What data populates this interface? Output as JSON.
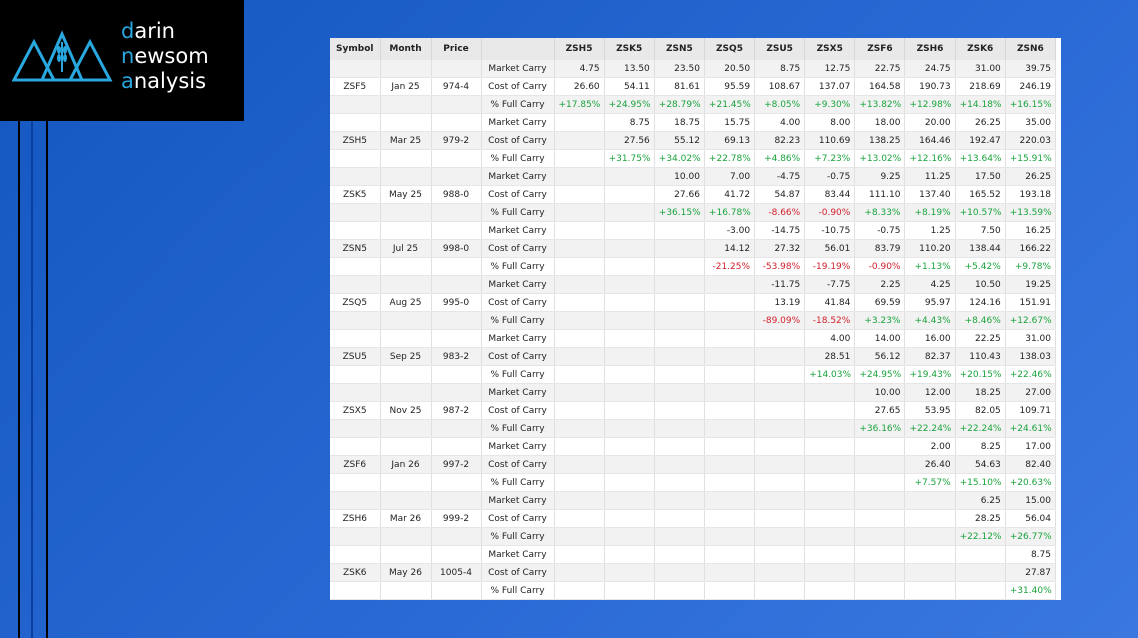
{
  "logo": {
    "words": [
      "darin",
      "newsom",
      "analysis"
    ]
  },
  "table": {
    "headers": [
      "Symbol",
      "Month",
      "Price",
      null,
      "ZSH5",
      "ZSK5",
      "ZSN5",
      "ZSQ5",
      "ZSU5",
      "ZSX5",
      "ZSF6",
      "ZSH6",
      "ZSK6",
      "ZSN6"
    ],
    "row_labels": [
      "Market Carry",
      "Cost of Carry",
      "% Full Carry"
    ],
    "blocks": [
      {
        "symbol": "ZSF5",
        "month": "Jan 25",
        "price": "974-4",
        "market_carry": [
          "4.75",
          "13.50",
          "23.50",
          "20.50",
          "8.75",
          "12.75",
          "22.75",
          "24.75",
          "31.00",
          "39.75"
        ],
        "cost_of_carry": [
          "26.60",
          "54.11",
          "81.61",
          "95.59",
          "108.67",
          "137.07",
          "164.58",
          "190.73",
          "218.69",
          "246.19"
        ],
        "full_carry": [
          "+17.85%",
          "+24.95%",
          "+28.79%",
          "+21.45%",
          "+8.05%",
          "+9.30%",
          "+13.82%",
          "+12.98%",
          "+14.18%",
          "+16.15%"
        ]
      },
      {
        "symbol": "ZSH5",
        "month": "Mar 25",
        "price": "979-2",
        "market_carry": [
          null,
          "8.75",
          "18.75",
          "15.75",
          "4.00",
          "8.00",
          "18.00",
          "20.00",
          "26.25",
          "35.00"
        ],
        "cost_of_carry": [
          null,
          "27.56",
          "55.12",
          "69.13",
          "82.23",
          "110.69",
          "138.25",
          "164.46",
          "192.47",
          "220.03"
        ],
        "full_carry": [
          null,
          "+31.75%",
          "+34.02%",
          "+22.78%",
          "+4.86%",
          "+7.23%",
          "+13.02%",
          "+12.16%",
          "+13.64%",
          "+15.91%"
        ]
      },
      {
        "symbol": "ZSK5",
        "month": "May 25",
        "price": "988-0",
        "market_carry": [
          null,
          null,
          "10.00",
          "7.00",
          "-4.75",
          "-0.75",
          "9.25",
          "11.25",
          "17.50",
          "26.25"
        ],
        "cost_of_carry": [
          null,
          null,
          "27.66",
          "41.72",
          "54.87",
          "83.44",
          "111.10",
          "137.40",
          "165.52",
          "193.18"
        ],
        "full_carry": [
          null,
          null,
          "+36.15%",
          "+16.78%",
          "-8.66%",
          "-0.90%",
          "+8.33%",
          "+8.19%",
          "+10.57%",
          "+13.59%"
        ]
      },
      {
        "symbol": "ZSN5",
        "month": "Jul 25",
        "price": "998-0",
        "market_carry": [
          null,
          null,
          null,
          "-3.00",
          "-14.75",
          "-10.75",
          "-0.75",
          "1.25",
          "7.50",
          "16.25"
        ],
        "cost_of_carry": [
          null,
          null,
          null,
          "14.12",
          "27.32",
          "56.01",
          "83.79",
          "110.20",
          "138.44",
          "166.22"
        ],
        "full_carry": [
          null,
          null,
          null,
          "-21.25%",
          "-53.98%",
          "-19.19%",
          "-0.90%",
          "+1.13%",
          "+5.42%",
          "+9.78%"
        ]
      },
      {
        "symbol": "ZSQ5",
        "month": "Aug 25",
        "price": "995-0",
        "market_carry": [
          null,
          null,
          null,
          null,
          "-11.75",
          "-7.75",
          "2.25",
          "4.25",
          "10.50",
          "19.25"
        ],
        "cost_of_carry": [
          null,
          null,
          null,
          null,
          "13.19",
          "41.84",
          "69.59",
          "95.97",
          "124.16",
          "151.91"
        ],
        "full_carry": [
          null,
          null,
          null,
          null,
          "-89.09%",
          "-18.52%",
          "+3.23%",
          "+4.43%",
          "+8.46%",
          "+12.67%"
        ]
      },
      {
        "symbol": "ZSU5",
        "month": "Sep 25",
        "price": "983-2",
        "market_carry": [
          null,
          null,
          null,
          null,
          null,
          "4.00",
          "14.00",
          "16.00",
          "22.25",
          "31.00"
        ],
        "cost_of_carry": [
          null,
          null,
          null,
          null,
          null,
          "28.51",
          "56.12",
          "82.37",
          "110.43",
          "138.03"
        ],
        "full_carry": [
          null,
          null,
          null,
          null,
          null,
          "+14.03%",
          "+24.95%",
          "+19.43%",
          "+20.15%",
          "+22.46%"
        ]
      },
      {
        "symbol": "ZSX5",
        "month": "Nov 25",
        "price": "987-2",
        "market_carry": [
          null,
          null,
          null,
          null,
          null,
          null,
          "10.00",
          "12.00",
          "18.25",
          "27.00"
        ],
        "cost_of_carry": [
          null,
          null,
          null,
          null,
          null,
          null,
          "27.65",
          "53.95",
          "82.05",
          "109.71"
        ],
        "full_carry": [
          null,
          null,
          null,
          null,
          null,
          null,
          "+36.16%",
          "+22.24%",
          "+22.24%",
          "+24.61%"
        ]
      },
      {
        "symbol": "ZSF6",
        "month": "Jan 26",
        "price": "997-2",
        "market_carry": [
          null,
          null,
          null,
          null,
          null,
          null,
          null,
          "2.00",
          "8.25",
          "17.00"
        ],
        "cost_of_carry": [
          null,
          null,
          null,
          null,
          null,
          null,
          null,
          "26.40",
          "54.63",
          "82.40"
        ],
        "full_carry": [
          null,
          null,
          null,
          null,
          null,
          null,
          null,
          "+7.57%",
          "+15.10%",
          "+20.63%"
        ]
      },
      {
        "symbol": "ZSH6",
        "month": "Mar 26",
        "price": "999-2",
        "market_carry": [
          null,
          null,
          null,
          null,
          null,
          null,
          null,
          null,
          "6.25",
          "15.00"
        ],
        "cost_of_carry": [
          null,
          null,
          null,
          null,
          null,
          null,
          null,
          null,
          "28.25",
          "56.04"
        ],
        "full_carry": [
          null,
          null,
          null,
          null,
          null,
          null,
          null,
          null,
          "+22.12%",
          "+26.77%"
        ]
      },
      {
        "symbol": "ZSK6",
        "month": "May 26",
        "price": "1005-4",
        "market_carry": [
          null,
          null,
          null,
          null,
          null,
          null,
          null,
          null,
          null,
          "8.75"
        ],
        "cost_of_carry": [
          null,
          null,
          null,
          null,
          null,
          null,
          null,
          null,
          null,
          "27.87"
        ],
        "full_carry": [
          null,
          null,
          null,
          null,
          null,
          null,
          null,
          null,
          null,
          "+31.40%"
        ]
      }
    ]
  }
}
